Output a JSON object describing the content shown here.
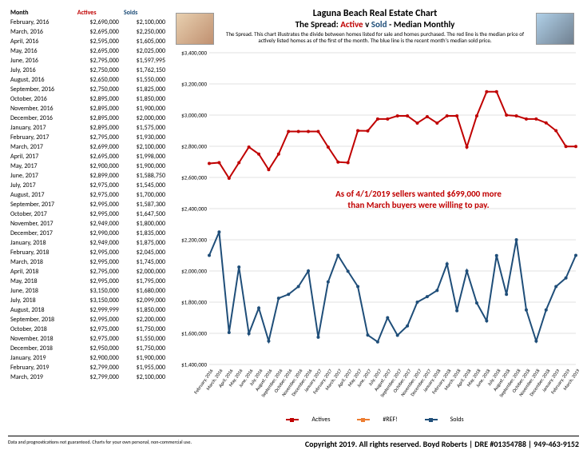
{
  "table": {
    "headers": {
      "month": "Month",
      "actives": "Actives",
      "solds": "Solds"
    },
    "header_colors": {
      "month": "#000000",
      "actives": "#c00000",
      "solds": "#1f4e79"
    },
    "rows": [
      [
        "February, 2016",
        "$2,690,000",
        "$2,100,000"
      ],
      [
        "March, 2016",
        "$2,695,000",
        "$2,250,000"
      ],
      [
        "April, 2016",
        "$2,595,000",
        "$1,605,000"
      ],
      [
        "May, 2016",
        "$2,695,000",
        "$2,025,000"
      ],
      [
        "June, 2016",
        "$2,795,000",
        "$1,597,995"
      ],
      [
        "July, 2016",
        "$2,750,000",
        "$1,762,150"
      ],
      [
        "August, 2016",
        "$2,650,000",
        "$1,550,000"
      ],
      [
        "September, 2016",
        "$2,750,000",
        "$1,825,000"
      ],
      [
        "October, 2016",
        "$2,895,000",
        "$1,850,000"
      ],
      [
        "November, 2016",
        "$2,895,000",
        "$1,900,000"
      ],
      [
        "December, 2016",
        "$2,895,000",
        "$2,000,000"
      ],
      [
        "January, 2017",
        "$2,895,000",
        "$1,575,000"
      ],
      [
        "February, 2017",
        "$2,795,000",
        "$1,930,000"
      ],
      [
        "March, 2017",
        "$2,699,000",
        "$2,100,000"
      ],
      [
        "April, 2017",
        "$2,695,000",
        "$1,998,000"
      ],
      [
        "May, 2017",
        "$2,900,000",
        "$1,900,000"
      ],
      [
        "June, 2017",
        "$2,899,000",
        "$1,588,750"
      ],
      [
        "July, 2017",
        "$2,975,000",
        "$1,545,000"
      ],
      [
        "August, 2017",
        "$2,975,000",
        "$1,700,000"
      ],
      [
        "September, 2017",
        "$2,995,000",
        "$1,587,300"
      ],
      [
        "October, 2017",
        "$2,995,000",
        "$1,647,500"
      ],
      [
        "November, 2017",
        "$2,949,000",
        "$1,800,000"
      ],
      [
        "December, 2017",
        "$2,990,000",
        "$1,835,000"
      ],
      [
        "January, 2018",
        "$2,949,000",
        "$1,875,000"
      ],
      [
        "February, 2018",
        "$2,995,000",
        "$2,045,000"
      ],
      [
        "March, 2018",
        "$2,995,000",
        "$1,745,000"
      ],
      [
        "April, 2018",
        "$2,795,000",
        "$2,000,000"
      ],
      [
        "May, 2018",
        "$2,995,000",
        "$1,795,000"
      ],
      [
        "June, 2018",
        "$3,150,000",
        "$1,680,000"
      ],
      [
        "July, 2018",
        "$3,150,000",
        "$2,099,000"
      ],
      [
        "August, 2018",
        "$2,999,999",
        "$1,850,000"
      ],
      [
        "September, 2018",
        "$2,995,000",
        "$2,200,000"
      ],
      [
        "October, 2018",
        "$2,975,000",
        "$1,750,000"
      ],
      [
        "November, 2018",
        "$2,975,000",
        "$1,550,000"
      ],
      [
        "December, 2018",
        "$2,950,000",
        "$1,750,000"
      ],
      [
        "January, 2019",
        "$2,900,000",
        "$1,900,000"
      ],
      [
        "February, 2019",
        "$2,799,000",
        "$1,955,000"
      ],
      [
        "March, 2019",
        "$2,799,000",
        "$2,100,000"
      ]
    ]
  },
  "chart": {
    "type": "line",
    "title1": "Laguna Beach Real Estate Chart",
    "title2_prefix": "The Spread: ",
    "title2_a": "Active",
    "title2_v": " v ",
    "title2_s": "Sold",
    "title2_suffix": " - Median Monthly",
    "desc": "The Spread.  This chart illustrates the divide between homes listed for sale and homes purchased.  The red line is the median price of actively listed homes as of the first of the month.  The blue line is the recent month's median sold price.",
    "note_line1": "As of 4/1/2019 sellers wanted $699,000 more",
    "note_line2": "than March buyers were willing to pay.",
    "ylim": [
      1400000,
      3400000
    ],
    "ytick_step": 200000,
    "yticks": [
      "$1,400,000",
      "$1,600,000",
      "$1,800,000",
      "$2,000,000",
      "$2,200,000",
      "$2,400,000",
      "$2,600,000",
      "$2,800,000",
      "$3,000,000",
      "$3,200,000",
      "$3,400,000"
    ],
    "xlabels": [
      "February, 2016",
      "March, 2016",
      "April, 2016",
      "May, 2016",
      "June, 2016",
      "July, 2016",
      "August, 2016",
      "September, 2016",
      "October, 2016",
      "November, 2016",
      "December, 2016",
      "January, 2017",
      "February, 2017",
      "March, 2017",
      "April, 2017",
      "May, 2017",
      "June, 2017",
      "July, 2017",
      "August, 2017",
      "September, 2017",
      "October, 2017",
      "November, 2017",
      "December, 2017",
      "January, 2018",
      "February, 2018",
      "March, 2018",
      "April, 2018",
      "May, 2018",
      "June, 2018",
      "July, 2018",
      "August, 2018",
      "September, 2018",
      "October, 2018",
      "November, 2018",
      "December, 2018",
      "January, 2019",
      "February, 2019",
      "March, 2019"
    ],
    "series": {
      "actives": {
        "label": "Actives",
        "color": "#c00000",
        "marker": "circle",
        "values": [
          2690000,
          2695000,
          2595000,
          2695000,
          2795000,
          2750000,
          2650000,
          2750000,
          2895000,
          2895000,
          2895000,
          2895000,
          2795000,
          2699000,
          2695000,
          2900000,
          2899000,
          2975000,
          2975000,
          2995000,
          2995000,
          2949000,
          2990000,
          2949000,
          2995000,
          2995000,
          2795000,
          2995000,
          3150000,
          3150000,
          2999999,
          2995000,
          2975000,
          2975000,
          2950000,
          2900000,
          2799000,
          2799000
        ]
      },
      "ref": {
        "label": "#REF!",
        "color": "#ed7d31",
        "marker": "square",
        "values": []
      },
      "solds": {
        "label": "Solds",
        "color": "#1f4e79",
        "marker": "circle",
        "values": [
          2100000,
          2250000,
          1605000,
          2025000,
          1597995,
          1762150,
          1550000,
          1825000,
          1850000,
          1900000,
          2000000,
          1575000,
          1930000,
          2100000,
          1998000,
          1900000,
          1588750,
          1545000,
          1700000,
          1587300,
          1647500,
          1800000,
          1835000,
          1875000,
          2045000,
          1745000,
          2000000,
          1795000,
          1680000,
          2099000,
          1850000,
          2200000,
          1750000,
          1550000,
          1750000,
          1900000,
          1955000,
          2100000
        ]
      }
    },
    "background_color": "#ffffff",
    "grid_color": "#e0e0e0",
    "line_width": 2,
    "marker_size": 4
  },
  "footer": {
    "disclaimer": "Data and prognostications not guaranteed.  Charts for your own personal, non-commercial use.",
    "copyright": "Copyright 2019.  All rights reserved.  Boyd Roberts | DRE #01354788 | 949-463-9152"
  }
}
